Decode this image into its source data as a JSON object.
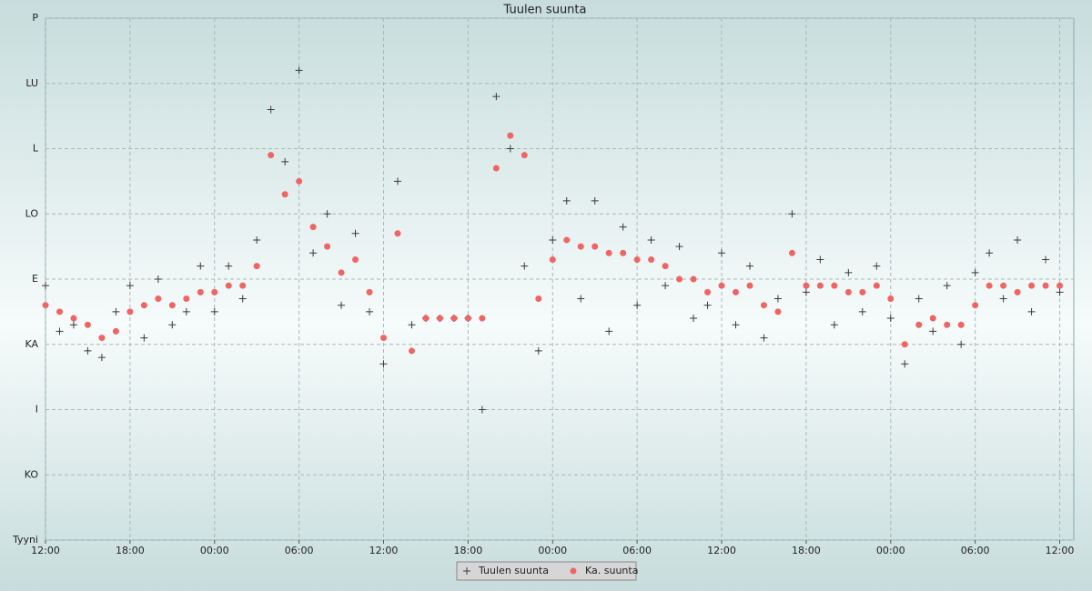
{
  "chart_data": {
    "type": "scatter",
    "title": "Tuulen suunta",
    "x": [
      0,
      1,
      2,
      3,
      4,
      5,
      6,
      7,
      8,
      9,
      10,
      11,
      12,
      13,
      14,
      15,
      16,
      17,
      18,
      19,
      20,
      21,
      22,
      23,
      24,
      25,
      26,
      27,
      28,
      29,
      30,
      31,
      32,
      33,
      34,
      35,
      36,
      37,
      38,
      39,
      40,
      41,
      42,
      43,
      44,
      45,
      46,
      47,
      48,
      49,
      50,
      51,
      52,
      53,
      54,
      55,
      56,
      57,
      58,
      59,
      60,
      61,
      62,
      63,
      64,
      65,
      66,
      67,
      68,
      69,
      70,
      71,
      72
    ],
    "series": [
      {
        "name": "Tuulen suunta",
        "color": "#3a3a3a",
        "marker": "cross",
        "values": [
          3.9,
          3.2,
          3.3,
          2.9,
          2.8,
          3.5,
          3.9,
          3.1,
          4.0,
          3.3,
          3.5,
          4.2,
          3.5,
          4.2,
          3.7,
          4.6,
          6.6,
          5.8,
          7.2,
          4.4,
          5.0,
          3.6,
          4.7,
          3.5,
          2.7,
          5.5,
          3.3,
          3.4,
          3.4,
          3.4,
          3.4,
          2.0,
          6.8,
          6.0,
          4.2,
          2.9,
          4.6,
          5.2,
          3.7,
          5.2,
          3.2,
          4.8,
          3.6,
          4.6,
          3.9,
          4.5,
          3.4,
          3.6,
          4.4,
          3.3,
          4.2,
          3.1,
          3.7,
          5.0,
          3.8,
          4.3,
          3.3,
          4.1,
          3.5,
          4.2,
          3.4,
          2.7,
          3.7,
          3.2,
          3.9,
          3.0,
          4.1,
          4.4,
          3.7,
          4.6,
          3.5,
          4.3,
          3.8
        ]
      },
      {
        "name": "Ka. suunta",
        "color": "#f06464",
        "marker": "dot",
        "values": [
          3.6,
          3.5,
          3.4,
          3.3,
          3.1,
          3.2,
          3.5,
          3.6,
          3.7,
          3.6,
          3.7,
          3.8,
          3.8,
          3.9,
          3.9,
          4.2,
          5.9,
          5.3,
          5.5,
          4.8,
          4.5,
          4.1,
          4.3,
          3.8,
          3.1,
          4.7,
          2.9,
          3.4,
          3.4,
          3.4,
          3.4,
          3.4,
          5.7,
          6.2,
          5.9,
          3.7,
          4.3,
          4.6,
          4.5,
          4.5,
          4.4,
          4.4,
          4.3,
          4.3,
          4.2,
          4.0,
          4.0,
          3.8,
          3.9,
          3.8,
          3.9,
          3.6,
          3.5,
          4.4,
          3.9,
          3.9,
          3.9,
          3.8,
          3.8,
          3.9,
          3.7,
          3.0,
          3.3,
          3.4,
          3.3,
          3.3,
          3.6,
          3.9,
          3.9,
          3.8,
          3.9,
          3.9,
          3.9
        ]
      }
    ],
    "xlim": [
      0,
      73
    ],
    "xticks": [
      {
        "value": 0,
        "label": "12:00"
      },
      {
        "value": 6,
        "label": "18:00"
      },
      {
        "value": 12,
        "label": "00:00"
      },
      {
        "value": 18,
        "label": "06:00"
      },
      {
        "value": 24,
        "label": "12:00"
      },
      {
        "value": 30,
        "label": "18:00"
      },
      {
        "value": 36,
        "label": "00:00"
      },
      {
        "value": 42,
        "label": "06:00"
      },
      {
        "value": 48,
        "label": "12:00"
      },
      {
        "value": 54,
        "label": "18:00"
      },
      {
        "value": 60,
        "label": "00:00"
      },
      {
        "value": 66,
        "label": "06:00"
      },
      {
        "value": 72,
        "label": "12:00"
      }
    ],
    "ylim": [
      0,
      8
    ],
    "yticks": [
      {
        "value": 0,
        "label": "Tyyni"
      },
      {
        "value": 1,
        "label": "KO"
      },
      {
        "value": 2,
        "label": "I"
      },
      {
        "value": 3,
        "label": "KA"
      },
      {
        "value": 4,
        "label": "E"
      },
      {
        "value": 5,
        "label": "LO"
      },
      {
        "value": 6,
        "label": "L"
      },
      {
        "value": 7,
        "label": "LU"
      },
      {
        "value": 8,
        "label": "P"
      }
    ],
    "grid": true,
    "legend": "bottom"
  }
}
